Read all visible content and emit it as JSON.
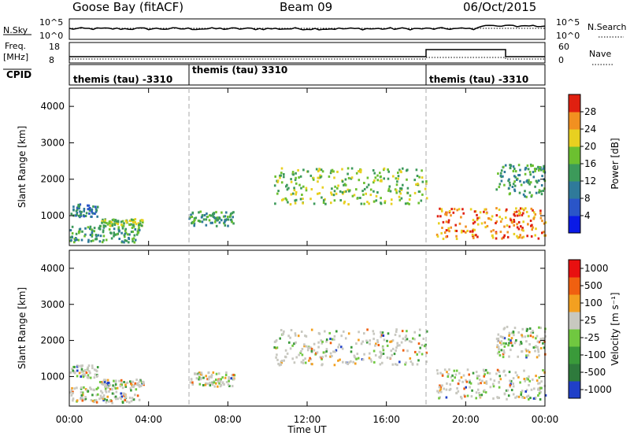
{
  "header": {
    "station": "Goose Bay (fitACF)",
    "beam": "Beam 09",
    "date": "06/Oct/2015"
  },
  "status_panels": {
    "nsky_label": "N.Sky",
    "nsky_ticks": [
      "10^5",
      "10^0"
    ],
    "nsearch_label": "N.Search",
    "nsearch_ticks": [
      "10^5",
      "10^0"
    ],
    "freq_label": "Freq.",
    "freq_unit": "[MHz]",
    "freq_ticks": [
      "18",
      "8"
    ],
    "nave_label": "Nave",
    "nave_ticks": [
      "60",
      "0"
    ],
    "cpid_label": "CPID",
    "cpid_segments": [
      {
        "start_hour": 0.0,
        "end_hour": 6.0,
        "label": "themis (tau) -3310"
      },
      {
        "start_hour": 6.0,
        "end_hour": 18.0,
        "label": "themis (tau) 3310"
      },
      {
        "start_hour": 18.0,
        "end_hour": 24.0,
        "label": "themis (tau) -3310"
      }
    ]
  },
  "x_axis": {
    "label": "Time UT",
    "ticks": [
      "00:00",
      "04:00",
      "08:00",
      "12:00",
      "16:00",
      "20:00",
      "00:00"
    ]
  },
  "chart_data": [
    {
      "type": "heatmap",
      "name": "power-panel",
      "ylabel": "Slant Range [km]",
      "ylim": [
        180,
        4500
      ],
      "y_ticks": [
        1000,
        2000,
        3000,
        4000
      ],
      "x_hours": [
        0,
        24
      ],
      "colorbar": {
        "label": "Power [dB]",
        "ticks": [
          "4",
          "8",
          "12",
          "16",
          "20",
          "24",
          "28"
        ],
        "colors": [
          "#0a1ae6",
          "#2a55c8",
          "#2f7a9a",
          "#3c9a5a",
          "#6cc030",
          "#e8d020",
          "#f29020",
          "#e02010"
        ]
      },
      "echo_regions": [
        {
          "t0": 0.0,
          "t1": 1.4,
          "r0": 950,
          "r1": 1300,
          "level": 2
        },
        {
          "t0": 0.0,
          "t1": 3.5,
          "r0": 250,
          "r1": 700,
          "level": 3
        },
        {
          "t0": 1.5,
          "t1": 3.8,
          "r0": 700,
          "r1": 900,
          "level": 4
        },
        {
          "t0": 6.0,
          "t1": 8.3,
          "r0": 700,
          "r1": 1100,
          "level": 3
        },
        {
          "t0": 10.3,
          "t1": 18.0,
          "r0": 1300,
          "r1": 2300,
          "level": 4
        },
        {
          "t0": 18.5,
          "t1": 24.0,
          "r0": 350,
          "r1": 1200,
          "level": 6
        },
        {
          "t0": 21.5,
          "t1": 24.0,
          "r0": 1500,
          "r1": 2400,
          "level": 3
        }
      ]
    },
    {
      "type": "heatmap",
      "name": "velocity-panel",
      "ylabel": "Slant Range [km]",
      "ylim": [
        180,
        4500
      ],
      "y_ticks": [
        1000,
        2000,
        3000,
        4000
      ],
      "x_hours": [
        0,
        24
      ],
      "colorbar": {
        "label": "Velocity [m s⁻¹]",
        "ticks": [
          "1000",
          "500",
          "100",
          "25",
          "-25",
          "-100",
          "-500",
          "-1000"
        ],
        "colors": [
          "#2040c8",
          "#2e7a3c",
          "#3a9a3a",
          "#70c840",
          "#c8c8c0",
          "#f3a020",
          "#f06010",
          "#e81010"
        ]
      }
    }
  ]
}
